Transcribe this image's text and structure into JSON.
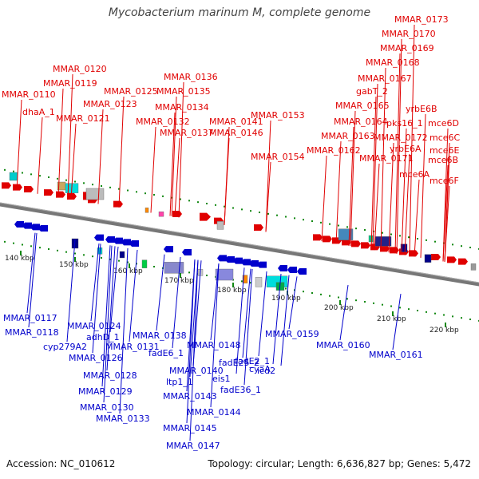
{
  "title": "Mycobacterium marinum M, complete genome",
  "footer": {
    "accession": "Accession: NC_010612",
    "summary": "Topology: circular; Length: 6,636,827 bp; Genes: 5,472"
  },
  "colors": {
    "forward": "#e00000",
    "reverse": "#0000cc",
    "axis": "#777777",
    "tick": "#118811"
  },
  "ticks": [
    "140 kbp",
    "150 kbp",
    "160 kbp",
    "170 kbp",
    "180 kbp",
    "190 kbp",
    "200 kbp",
    "210 kbp",
    "220 kbp"
  ],
  "forward_labels": [
    "MMAR_0173",
    "MMAR_0170",
    "MMAR_0169",
    "MMAR_0168",
    "MMAR_0120",
    "MMAR_0136",
    "MMAR_0167",
    "MMAR_0119",
    "MMAR_0125",
    "MMAR_0135",
    "gabT_2",
    "MMAR_0110",
    "MMAR_0123",
    "MMAR_0134",
    "MMAR_0165",
    "yrbE6B",
    "dhaA_1",
    "MMAR_0121",
    "MMAR_0132",
    "MMAR_0141",
    "MMAR_0153",
    "MMAR_0164",
    "pks16_1",
    "mce6D",
    "MMAR_0137",
    "MMAR_0146",
    "MMAR_0163",
    "MMAR_0172",
    "mce6C",
    "MMAR_0162",
    "yrbE6A",
    "mce6E",
    "MMAR_0154",
    "MMAR_0171",
    "mce6B",
    "mce6A",
    "mce6F"
  ],
  "reverse_labels": [
    "MMAR_0117",
    "MMAR_0118",
    "MMAR_0124",
    "cyp279A2",
    "adhD_1",
    "MMAR_0131",
    "MMAR_0138",
    "MMAR_0148",
    "MMAR_0126",
    "fadE6_1",
    "fadE2_1",
    "MMAR_0159",
    "cyaA",
    "MMAR_0160",
    "MMAR_0140",
    "fadE25_2",
    "icd2",
    "MMAR_0161",
    "MMAR_0128",
    "ltp1_1",
    "eis1",
    "MMAR_0129",
    "fadE36_1",
    "MMAR_0143",
    "MMAR_0130",
    "MMAR_0144",
    "MMAR_0133",
    "MMAR_0145",
    "MMAR_0147"
  ]
}
